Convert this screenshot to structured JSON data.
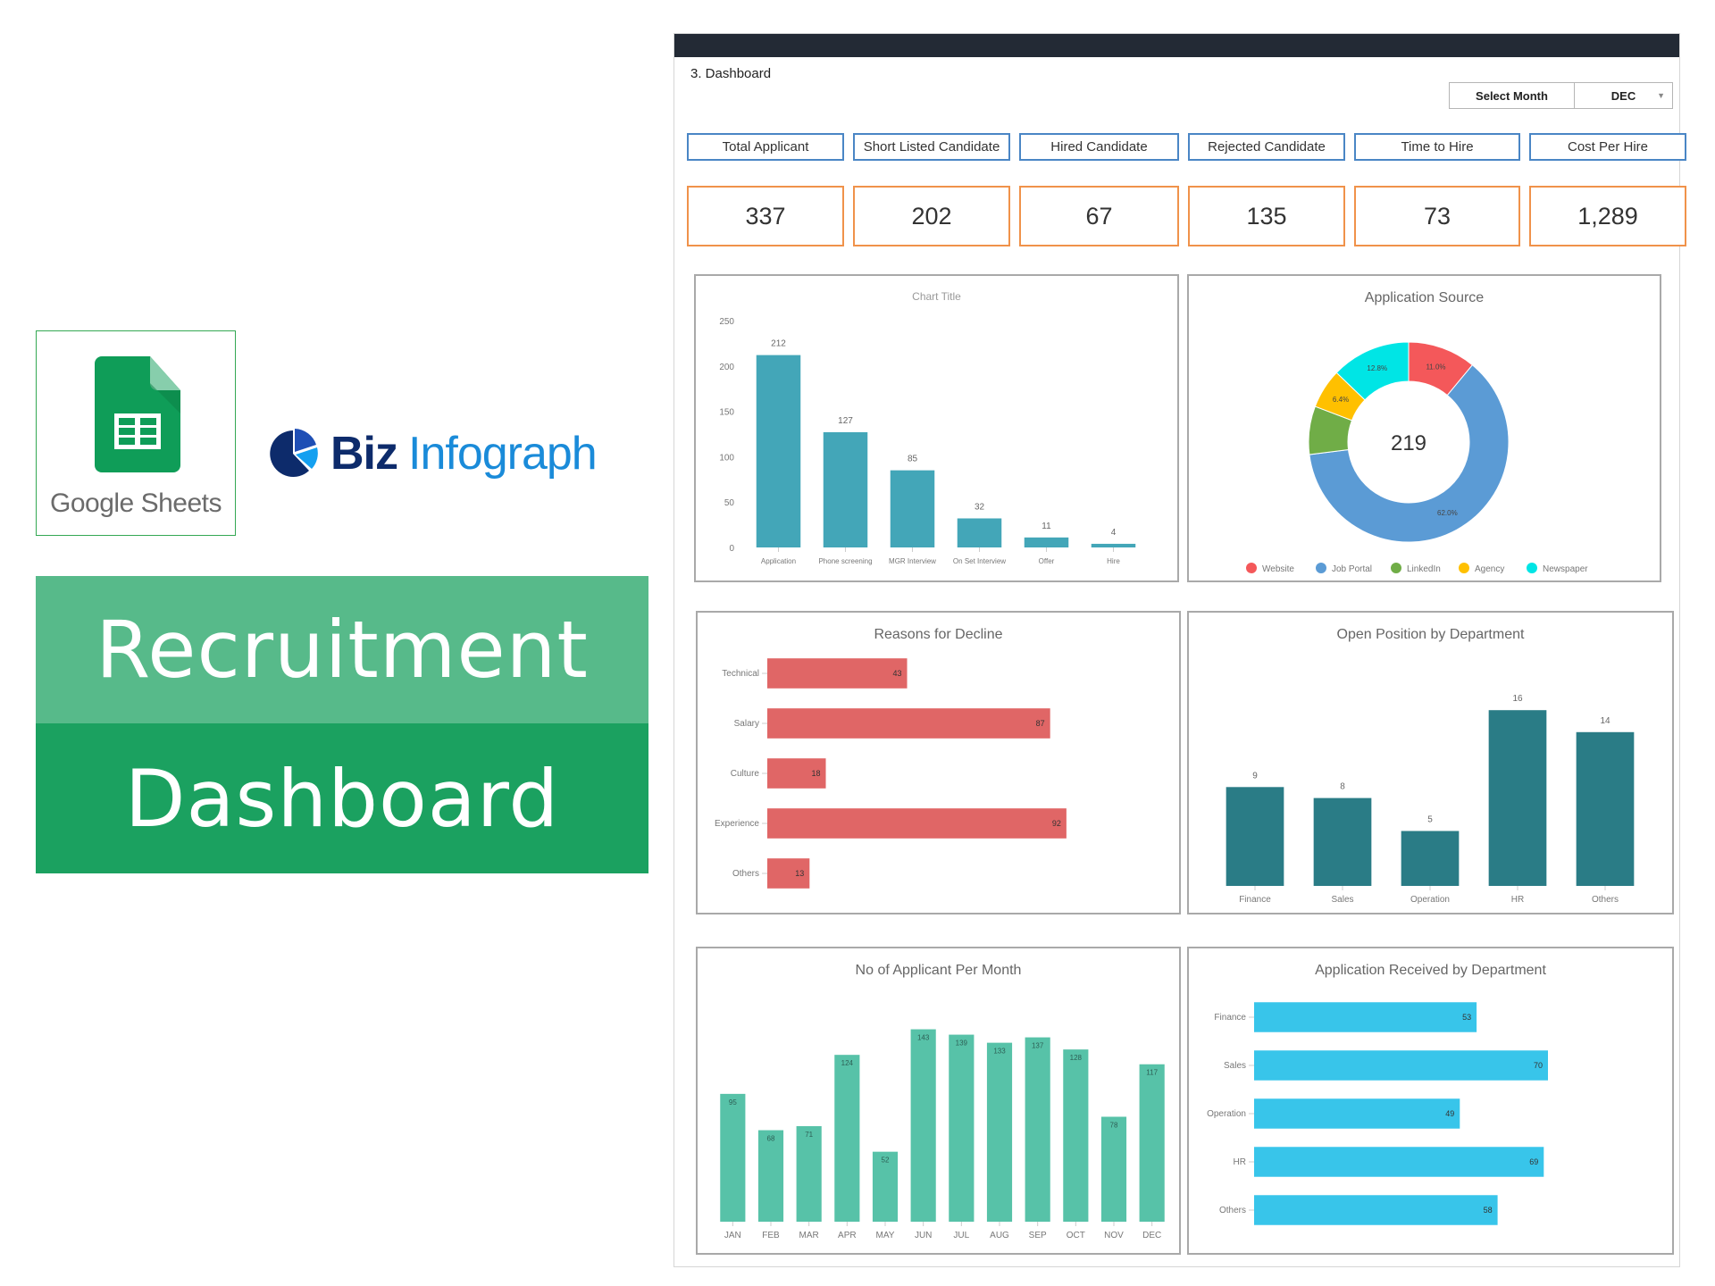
{
  "branding": {
    "google_sheets_label": "Google Sheets",
    "biz_infograph": {
      "part1": "Biz",
      "part2": "Infograph"
    },
    "title_line1": "Recruitment",
    "title_line2": "Dashboard",
    "colors": {
      "title_top": "#57ba8a",
      "title_bottom": "#1ba160",
      "biz_dark": "#0d2b6b",
      "biz_light": "#1a8bd9"
    }
  },
  "dashboard": {
    "sheet_label": "3. Dashboard",
    "month_filter": {
      "label": "Select Month",
      "value": "DEC"
    },
    "kpis": [
      {
        "label": "Total Applicant",
        "value": "337"
      },
      {
        "label": "Short Listed Candidate",
        "value": "202"
      },
      {
        "label": "Hired Candidate",
        "value": "67"
      },
      {
        "label": "Rejected Candidate",
        "value": "135"
      },
      {
        "label": "Time to Hire",
        "value": "73"
      },
      {
        "label": "Cost Per Hire",
        "value": "1,289"
      }
    ]
  },
  "chart_data": [
    {
      "id": "funnel",
      "type": "bar",
      "title": "Chart Title",
      "categories": [
        "Application",
        "Phone screening",
        "MGR Interview",
        "On Set Interview",
        "Offer",
        "Hire"
      ],
      "values": [
        212,
        127,
        85,
        32,
        11,
        4
      ],
      "ylim": [
        0,
        250
      ],
      "yticks": [
        0,
        50,
        100,
        150,
        200,
        250
      ],
      "color": "#43a6b8",
      "grid": false,
      "xlabel": "",
      "ylabel": ""
    },
    {
      "id": "source",
      "type": "pie",
      "donut": true,
      "title": "Application Source",
      "center_label": "219",
      "categories": [
        "Website",
        "Job Portal",
        "LinkedIn",
        "Agency",
        "Newspaper"
      ],
      "values": [
        11.0,
        62.0,
        7.8,
        6.4,
        12.8
      ],
      "labels": [
        "11.0%",
        "62.0%",
        "",
        "6.4%",
        "12.8%"
      ],
      "colors": [
        "#f4585a",
        "#5b9bd5",
        "#70ad47",
        "#ffc000",
        "#00e5e5"
      ],
      "legend_position": "bottom"
    },
    {
      "id": "decline",
      "type": "bar",
      "orientation": "horizontal",
      "title": "Reasons for Decline",
      "categories": [
        "Technical",
        "Salary",
        "Culture",
        "Experience",
        "Others"
      ],
      "values": [
        43,
        87,
        18,
        92,
        13
      ],
      "xlim": [
        0,
        100
      ],
      "color": "#e06666",
      "grid": false
    },
    {
      "id": "open_positions",
      "type": "bar",
      "title": "Open Position by Department",
      "categories": [
        "Finance",
        "Sales",
        "Operation",
        "HR",
        "Others"
      ],
      "values": [
        9,
        8,
        5,
        16,
        14
      ],
      "ylim": [
        0,
        20
      ],
      "color": "#2a7c86",
      "grid": false
    },
    {
      "id": "monthly",
      "type": "bar",
      "title": "No of Applicant Per Month",
      "categories": [
        "JAN",
        "FEB",
        "MAR",
        "APR",
        "MAY",
        "JUN",
        "JUL",
        "AUG",
        "SEP",
        "OCT",
        "NOV",
        "DEC"
      ],
      "values": [
        95,
        68,
        71,
        124,
        52,
        143,
        139,
        133,
        137,
        128,
        78,
        117
      ],
      "ylim": [
        0,
        150
      ],
      "color": "#57c2a8",
      "grid": false
    },
    {
      "id": "received",
      "type": "bar",
      "orientation": "horizontal",
      "title": "Application Received by Department",
      "categories": [
        "Finance",
        "Sales",
        "Operation",
        "HR",
        "Others"
      ],
      "values": [
        53,
        70,
        49,
        69,
        58
      ],
      "xlim": [
        0,
        80
      ],
      "color": "#38c5ea",
      "grid": false
    }
  ]
}
